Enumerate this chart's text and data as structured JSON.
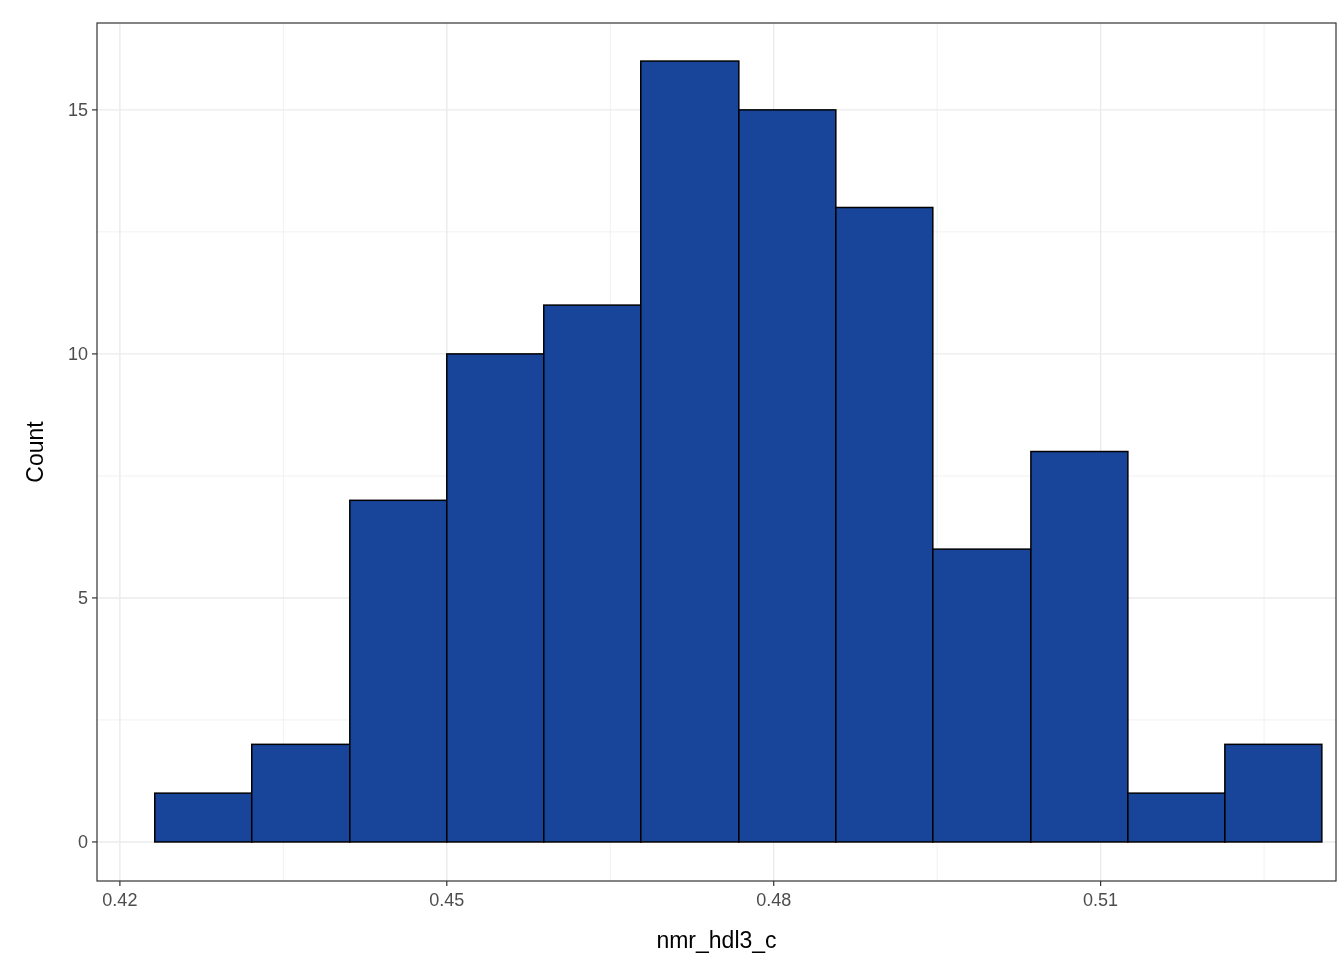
{
  "chart_data": {
    "type": "histogram",
    "xlabel": "nmr_hdl3_c",
    "ylabel": "Count",
    "bins": [
      0.4232,
      0.4321,
      0.4411,
      0.45,
      0.4589,
      0.4678,
      0.4768,
      0.4857,
      0.4946,
      0.5036,
      0.5125,
      0.5214,
      0.5303
    ],
    "values": [
      1,
      2,
      7,
      10,
      11,
      16,
      15,
      13,
      6,
      8,
      1,
      2
    ],
    "color": "#18449a",
    "xlim": [
      0.4179,
      0.5316
    ],
    "xticks": [
      0.42,
      0.45,
      0.48,
      0.51
    ],
    "ylim": [
      -0.8,
      16.78
    ],
    "yticks": [
      0,
      5,
      10,
      15
    ],
    "grid": true
  }
}
